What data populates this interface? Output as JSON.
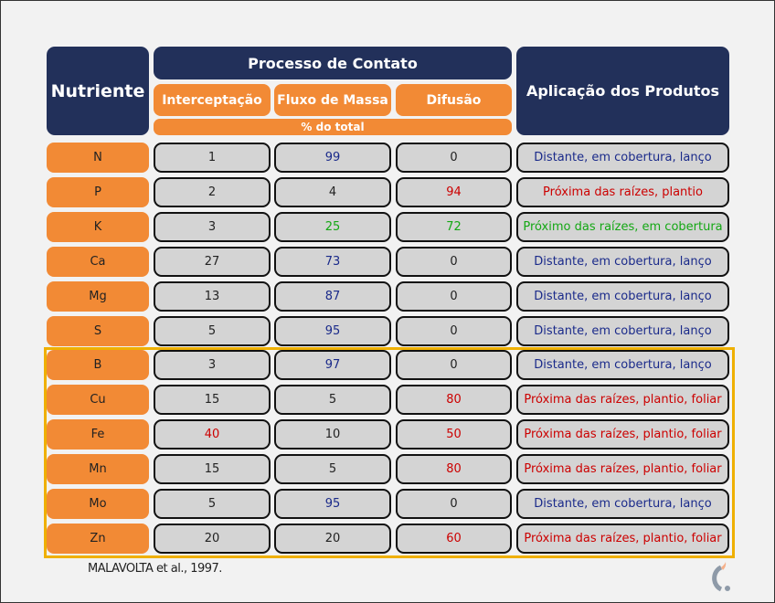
{
  "header": {
    "nutriente": "Nutriente",
    "processo": "Processo de Contato",
    "interceptacao": "Interceptação",
    "fluxo": "Fluxo de Massa",
    "difusao": "Difusão",
    "unit": "% do total",
    "aplicacao": "Aplicação dos Produtos"
  },
  "colors": {
    "navy": "#22305a",
    "orange": "#f28a35",
    "blue": "#1a2a8a",
    "red": "#cc0000",
    "green": "#14a814",
    "highlight": "#efb000"
  },
  "rows": [
    {
      "nutriente": "N",
      "interceptacao": "1",
      "fluxo": "99",
      "difusao": "0",
      "aplicacao": "Distante, em cobertura, lanço",
      "colors": [
        "dark",
        "blue",
        "dark",
        "blue"
      ]
    },
    {
      "nutriente": "P",
      "interceptacao": "2",
      "fluxo": "4",
      "difusao": "94",
      "aplicacao": "Próxima das raízes, plantio",
      "colors": [
        "dark",
        "dark",
        "red",
        "red"
      ]
    },
    {
      "nutriente": "K",
      "interceptacao": "3",
      "fluxo": "25",
      "difusao": "72",
      "aplicacao": "Próximo das raízes, em cobertura",
      "colors": [
        "dark",
        "green",
        "green",
        "green"
      ]
    },
    {
      "nutriente": "Ca",
      "interceptacao": "27",
      "fluxo": "73",
      "difusao": "0",
      "aplicacao": "Distante, em cobertura, lanço",
      "colors": [
        "dark",
        "blue",
        "dark",
        "blue"
      ]
    },
    {
      "nutriente": "Mg",
      "interceptacao": "13",
      "fluxo": "87",
      "difusao": "0",
      "aplicacao": "Distante, em cobertura, lanço",
      "colors": [
        "dark",
        "blue",
        "dark",
        "blue"
      ]
    },
    {
      "nutriente": "S",
      "interceptacao": "5",
      "fluxo": "95",
      "difusao": "0",
      "aplicacao": "Distante, em cobertura, lanço",
      "colors": [
        "dark",
        "blue",
        "dark",
        "blue"
      ]
    },
    {
      "nutriente": "B",
      "interceptacao": "3",
      "fluxo": "97",
      "difusao": "0",
      "aplicacao": "Distante, em cobertura, lanço",
      "colors": [
        "dark",
        "blue",
        "dark",
        "blue"
      ]
    },
    {
      "nutriente": "Cu",
      "interceptacao": "15",
      "fluxo": "5",
      "difusao": "80",
      "aplicacao": "Próxima das raízes, plantio, foliar",
      "colors": [
        "dark",
        "dark",
        "red",
        "red"
      ]
    },
    {
      "nutriente": "Fe",
      "interceptacao": "40",
      "fluxo": "10",
      "difusao": "50",
      "aplicacao": "Próxima das raízes, plantio, foliar",
      "colors": [
        "red",
        "dark",
        "red",
        "red"
      ]
    },
    {
      "nutriente": "Mn",
      "interceptacao": "15",
      "fluxo": "5",
      "difusao": "80",
      "aplicacao": "Próxima das raízes, plantio, foliar",
      "colors": [
        "dark",
        "dark",
        "red",
        "red"
      ]
    },
    {
      "nutriente": "Mo",
      "interceptacao": "5",
      "fluxo": "95",
      "difusao": "0",
      "aplicacao": "Distante, em cobertura, lanço",
      "colors": [
        "dark",
        "blue",
        "dark",
        "blue"
      ]
    },
    {
      "nutriente": "Zn",
      "interceptacao": "20",
      "fluxo": "20",
      "difusao": "60",
      "aplicacao": "Próxima das raízes, plantio, foliar",
      "colors": [
        "dark",
        "dark",
        "red",
        "red"
      ]
    }
  ],
  "source": "MALAVOLTA et al., 1997."
}
